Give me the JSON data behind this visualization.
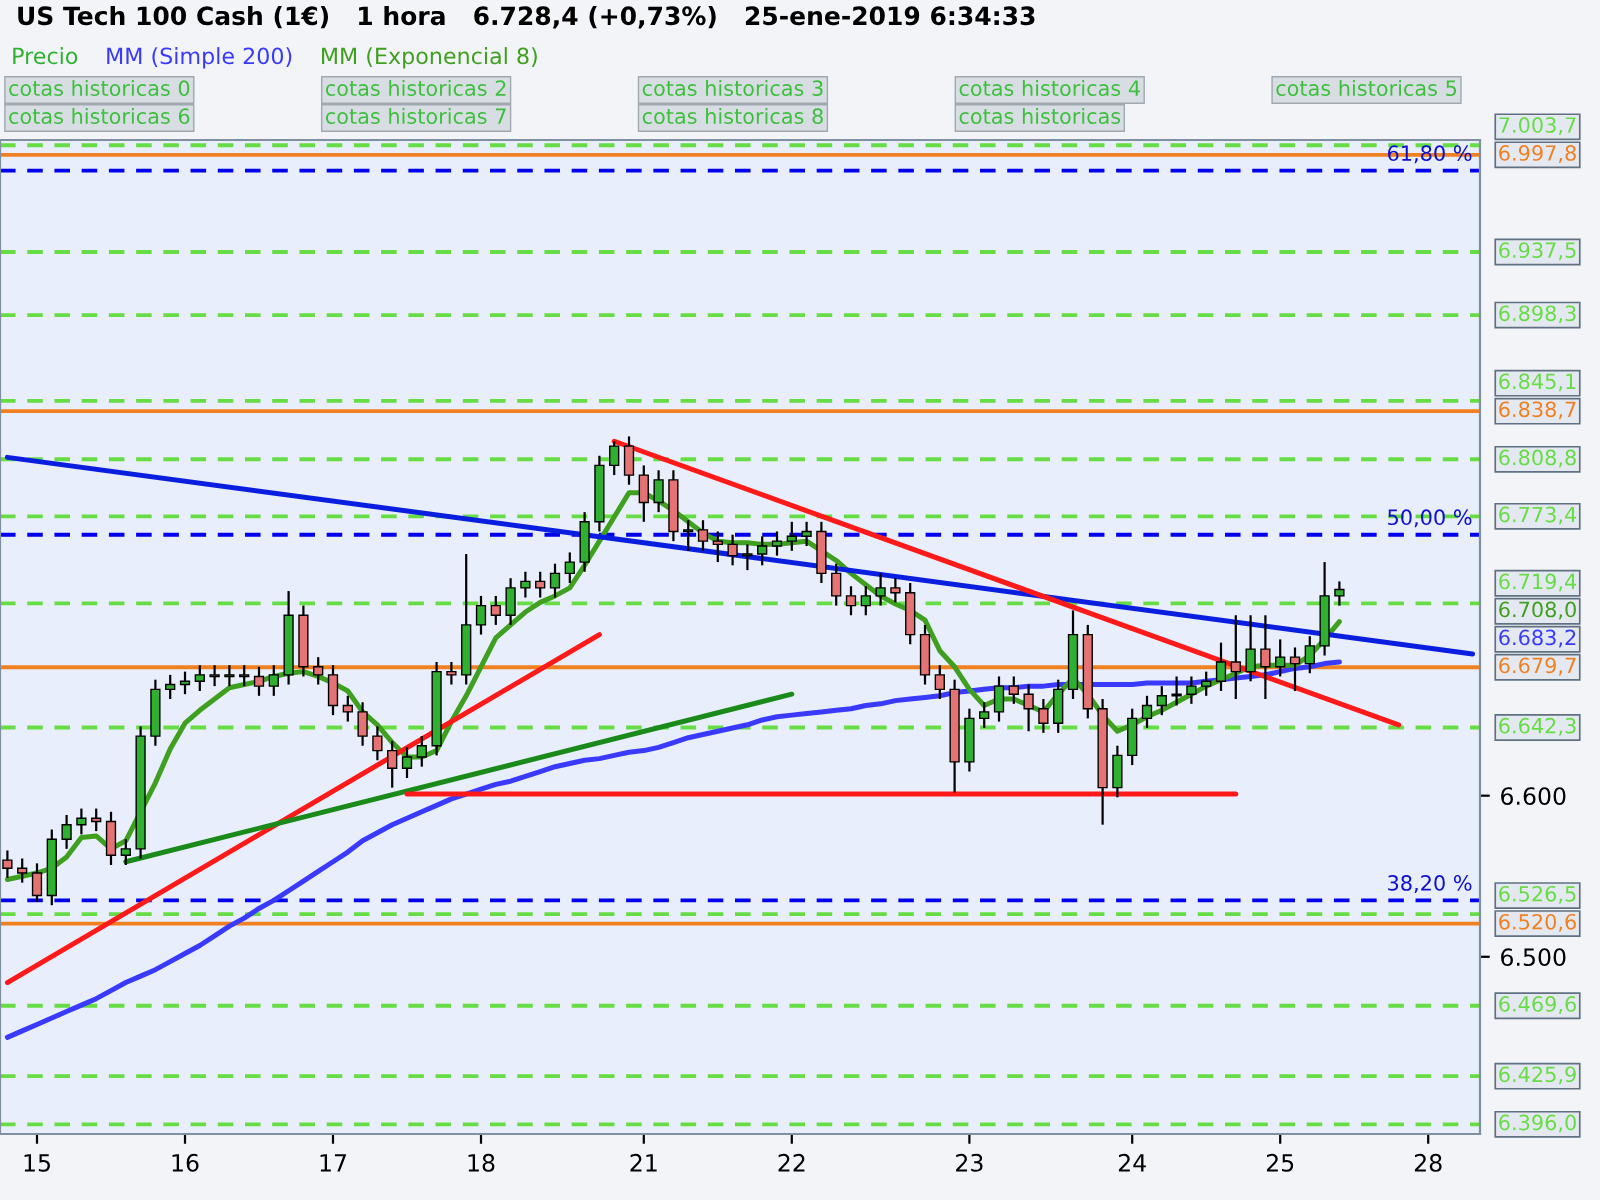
{
  "chart_data": {
    "type": "candlestick",
    "title": "US Tech 100 Cash (1€)   1 hora   6.728,4 (+0,73%)   25-ene-2019 6:34:33",
    "categories": [
      null,
      null,
      "15",
      null,
      null,
      null,
      null,
      null,
      null,
      null,
      null,
      null,
      "16",
      null,
      null,
      null,
      null,
      null,
      null,
      null,
      null,
      null,
      "17",
      null,
      null,
      null,
      null,
      null,
      null,
      null,
      null,
      null,
      "18",
      null,
      null,
      null,
      null,
      null,
      null,
      null,
      null,
      null,
      null,
      "21",
      null,
      null,
      null,
      null,
      null,
      null,
      null,
      null,
      null,
      "22",
      null,
      null,
      null,
      null,
      null,
      null,
      null,
      null,
      null,
      null,
      null,
      "23",
      null,
      null,
      null,
      null,
      null,
      null,
      null,
      null,
      null,
      null,
      "24",
      null,
      null,
      null,
      null,
      null,
      null,
      null,
      null,
      null,
      "25",
      null,
      null,
      null,
      null,
      null,
      null,
      null,
      null,
      null,
      "28",
      null,
      null,
      null
    ],
    "ylim": [
      6390,
      7007
    ],
    "yticks": [
      {
        "value": 6600,
        "label": "6.600"
      },
      {
        "value": 6500,
        "label": "6.500"
      }
    ],
    "legend": "top left",
    "marker": "none",
    "series": [
      {
        "name": "Precio",
        "color": "#30b030",
        "ohlc": [
          [
            6560,
            6566,
            6549,
            6555
          ],
          [
            6555,
            6561,
            6546,
            6552
          ],
          [
            6552,
            6558,
            6534,
            6538
          ],
          [
            6538,
            6579,
            6532,
            6573
          ],
          [
            6573,
            6588,
            6567,
            6582
          ],
          [
            6582,
            6592,
            6576,
            6586
          ],
          [
            6586,
            6592,
            6578,
            6584
          ],
          [
            6584,
            6590,
            6557,
            6563
          ],
          [
            6563,
            6573,
            6557,
            6567
          ],
          [
            6567,
            6643,
            6561,
            6637
          ],
          [
            6637,
            6672,
            6631,
            6666
          ],
          [
            6666,
            6675,
            6660,
            6669
          ],
          [
            6669,
            6677,
            6663,
            6671
          ],
          [
            6671,
            6681,
            6665,
            6675
          ],
          [
            6675,
            6681,
            6668,
            6674
          ],
          [
            6674,
            6681,
            6668,
            6675
          ],
          [
            6675,
            6681,
            6668,
            6674
          ],
          [
            6674,
            6680,
            6662,
            6668
          ],
          [
            6668,
            6681,
            6662,
            6675
          ],
          [
            6675,
            6727,
            6669,
            6712
          ],
          [
            6712,
            6718,
            6674,
            6680
          ],
          [
            6680,
            6686,
            6669,
            6675
          ],
          [
            6675,
            6681,
            6650,
            6656
          ],
          [
            6656,
            6662,
            6646,
            6652
          ],
          [
            6652,
            6658,
            6631,
            6637
          ],
          [
            6637,
            6643,
            6622,
            6628
          ],
          [
            6628,
            6634,
            6605,
            6617
          ],
          [
            6617,
            6630,
            6611,
            6624
          ],
          [
            6624,
            6637,
            6618,
            6631
          ],
          [
            6631,
            6683,
            6625,
            6677
          ],
          [
            6677,
            6683,
            6669,
            6675
          ],
          [
            6675,
            6750,
            6669,
            6706
          ],
          [
            6706,
            6724,
            6700,
            6718
          ],
          [
            6718,
            6724,
            6706,
            6712
          ],
          [
            6712,
            6735,
            6706,
            6729
          ],
          [
            6729,
            6739,
            6723,
            6733
          ],
          [
            6733,
            6739,
            6723,
            6729
          ],
          [
            6729,
            6744,
            6723,
            6738
          ],
          [
            6738,
            6751,
            6732,
            6745
          ],
          [
            6745,
            6776,
            6739,
            6770
          ],
          [
            6770,
            6811,
            6764,
            6805
          ],
          [
            6805,
            6820,
            6799,
            6817
          ],
          [
            6817,
            6823,
            6793,
            6799
          ],
          [
            6799,
            6805,
            6770,
            6782
          ],
          [
            6782,
            6802,
            6776,
            6796
          ],
          [
            6796,
            6802,
            6758,
            6764
          ],
          [
            6764,
            6771,
            6752,
            6765
          ],
          [
            6765,
            6771,
            6752,
            6758
          ],
          [
            6758,
            6764,
            6745,
            6756
          ],
          [
            6756,
            6762,
            6743,
            6749
          ],
          [
            6749,
            6756,
            6740,
            6750
          ],
          [
            6750,
            6761,
            6743,
            6755
          ],
          [
            6755,
            6764,
            6749,
            6758
          ],
          [
            6758,
            6770,
            6752,
            6761
          ],
          [
            6761,
            6770,
            6755,
            6764
          ],
          [
            6764,
            6770,
            6732,
            6738
          ],
          [
            6738,
            6744,
            6718,
            6724
          ],
          [
            6724,
            6730,
            6712,
            6718
          ],
          [
            6718,
            6730,
            6712,
            6724
          ],
          [
            6724,
            6738,
            6718,
            6729
          ],
          [
            6729,
            6735,
            6720,
            6726
          ],
          [
            6726,
            6732,
            6694,
            6700
          ],
          [
            6700,
            6706,
            6669,
            6675
          ],
          [
            6675,
            6681,
            6660,
            6666
          ],
          [
            6666,
            6672,
            6602,
            6621
          ],
          [
            6621,
            6654,
            6615,
            6648
          ],
          [
            6648,
            6658,
            6642,
            6652
          ],
          [
            6652,
            6674,
            6646,
            6668
          ],
          [
            6668,
            6674,
            6657,
            6663
          ],
          [
            6663,
            6669,
            6640,
            6654
          ],
          [
            6654,
            6660,
            6639,
            6645
          ],
          [
            6645,
            6672,
            6639,
            6666
          ],
          [
            6666,
            6715,
            6660,
            6700
          ],
          [
            6700,
            6706,
            6648,
            6654
          ],
          [
            6654,
            6660,
            6582,
            6605
          ],
          [
            6605,
            6631,
            6599,
            6625
          ],
          [
            6625,
            6654,
            6619,
            6648
          ],
          [
            6648,
            6662,
            6642,
            6656
          ],
          [
            6656,
            6668,
            6650,
            6662
          ],
          [
            6662,
            6674,
            6656,
            6663
          ],
          [
            6663,
            6674,
            6657,
            6668
          ],
          [
            6668,
            6677,
            6662,
            6671
          ],
          [
            6671,
            6695,
            6665,
            6683
          ],
          [
            6683,
            6712,
            6660,
            6677
          ],
          [
            6677,
            6712,
            6671,
            6691
          ],
          [
            6691,
            6712,
            6660,
            6680
          ],
          [
            6680,
            6697,
            6674,
            6686
          ],
          [
            6686,
            6692,
            6665,
            6682
          ],
          [
            6682,
            6699,
            6676,
            6693
          ],
          [
            6693,
            6745,
            6687,
            6724
          ],
          [
            6724,
            6733,
            6718,
            6728
          ],
          null,
          null,
          null,
          null,
          null,
          null,
          null,
          null,
          null
        ],
        "colors": [
          "#e67373",
          "#e67373",
          "#e67373",
          "#30b030",
          "#30b030",
          "#30b030",
          "#e67373",
          "#e67373",
          "#30b030",
          "#30b030",
          "#30b030",
          "#30b030",
          "#30b030",
          "#30b030",
          "#e67373",
          "#30b030",
          "#e67373",
          "#e67373",
          "#30b030",
          "#30b030",
          "#e67373",
          "#e67373",
          "#e67373",
          "#e67373",
          "#e67373",
          "#e67373",
          "#e67373",
          "#30b030",
          "#30b030",
          "#30b030",
          "#e67373",
          "#30b030",
          "#30b030",
          "#e67373",
          "#30b030",
          "#30b030",
          "#e67373",
          "#30b030",
          "#30b030",
          "#30b030",
          "#30b030",
          "#30b030",
          "#e67373",
          "#e67373",
          "#30b030",
          "#e67373",
          "#30b030",
          "#e67373",
          "#e67373",
          "#e67373",
          "#30b030",
          "#30b030",
          "#30b030",
          "#30b030",
          "#30b030",
          "#e67373",
          "#e67373",
          "#e67373",
          "#30b030",
          "#30b030",
          "#e67373",
          "#e67373",
          "#e67373",
          "#e67373",
          "#e67373",
          "#30b030",
          "#30b030",
          "#30b030",
          "#e67373",
          "#e67373",
          "#e67373",
          "#30b030",
          "#30b030",
          "#e67373",
          "#e67373",
          "#30b030",
          "#30b030",
          "#30b030",
          "#30b030",
          "#30b030",
          "#30b030",
          "#30b030",
          "#30b030",
          "#e67373",
          "#30b030",
          "#e67373",
          "#30b030",
          "#e67373",
          "#30b030",
          "#30b030",
          "#30b030",
          null,
          null,
          null,
          null,
          null,
          null,
          null,
          null,
          null
        ]
      },
      {
        "type": "line",
        "name": "MM (Simple 200)",
        "color": "#3a3aff",
        "values": [
          6450,
          6454,
          6458,
          6462,
          6466,
          6470,
          6474,
          6479,
          6484,
          6488,
          6492,
          6497,
          6502,
          6507,
          6513,
          6519,
          6524,
          6530,
          6535,
          6541,
          6547,
          6553,
          6559,
          6565,
          6572,
          6577,
          6582,
          6586,
          6590,
          6594,
          6598,
          6601,
          6604,
          6607,
          6609,
          6612,
          6615,
          6618,
          6620,
          6622,
          6623,
          6625,
          6627,
          6628,
          6630,
          6633,
          6636,
          6638,
          6640,
          6642,
          6644,
          6647,
          6649,
          6650,
          6651,
          6652,
          6653,
          6654,
          6656,
          6657,
          6659,
          6660,
          6661,
          6662,
          6664,
          6665,
          6666,
          6667,
          6667,
          6668,
          6668,
          6669,
          6669,
          6669,
          6669,
          6669,
          6669,
          6670,
          6670,
          6670,
          6670,
          6671,
          6672,
          6673,
          6674,
          6675,
          6677,
          6679,
          6680,
          6682,
          6683,
          null,
          null,
          null,
          null,
          null,
          null,
          null,
          null,
          null
        ]
      },
      {
        "type": "line",
        "name": "MM (Exponencial 8)",
        "color": "#3f9f1f",
        "values": [
          6548,
          6550,
          6552,
          6555,
          6562,
          6574,
          6575,
          6567,
          6572,
          6590,
          6608,
          6629,
          6645,
          6653,
          6660,
          6667,
          6669,
          6671,
          6674,
          6676,
          6677,
          6674,
          6670,
          6665,
          6652,
          6644,
          6633,
          6624,
          6624,
          6628,
          6646,
          6662,
          6680,
          6698,
          6706,
          6714,
          6720,
          6724,
          6729,
          6743,
          6758,
          6773,
          6788,
          6788,
          6783,
          6777,
          6770,
          6763,
          6758,
          6757,
          6757,
          6756,
          6756,
          6757,
          6758,
          6752,
          6746,
          6738,
          6731,
          6724,
          6719,
          6715,
          6709,
          6690,
          6680,
          6666,
          6656,
          6660,
          6660,
          6656,
          6652,
          6663,
          6673,
          6663,
          6650,
          6640,
          6644,
          6649,
          6653,
          6658,
          6663,
          6668,
          6672,
          6676,
          6680,
          6681,
          6681,
          6681,
          6687,
          6697,
          6708,
          null,
          null,
          null,
          null,
          null,
          null,
          null,
          null,
          null
        ]
      },
      {
        "type": "line",
        "color": "#0a1ee0",
        "values": [
          6810,
          null,
          null,
          null,
          null,
          null,
          null,
          null,
          null,
          null,
          null,
          null,
          null,
          null,
          null,
          null,
          null,
          null,
          null,
          null,
          null,
          null,
          null,
          null,
          null,
          null,
          null,
          null,
          null,
          null,
          null,
          null,
          null,
          null,
          null,
          null,
          null,
          null,
          null,
          null,
          null,
          null,
          null,
          null,
          null,
          null,
          null,
          null,
          null,
          null,
          null,
          null,
          null,
          null,
          null,
          null,
          null,
          null,
          null,
          null,
          null,
          null,
          null,
          null,
          null,
          null,
          null,
          null,
          null,
          null,
          null,
          null,
          null,
          null,
          null,
          null,
          null,
          null,
          null,
          null,
          null,
          null,
          null,
          null,
          null,
          null,
          null,
          null,
          null,
          null,
          null,
          null,
          null,
          null,
          null,
          null,
          null,
          null,
          null,
          6688
        ]
      },
      {
        "type": "line",
        "color": "#ff1a1a",
        "values": [
          6484,
          null,
          null,
          null,
          null,
          null,
          null,
          null,
          null,
          null,
          null,
          null,
          null,
          null,
          null,
          null,
          null,
          null,
          null,
          null,
          null,
          null,
          null,
          null,
          null,
          null,
          null,
          null,
          null,
          null,
          null,
          null,
          null,
          null,
          null,
          null,
          null,
          null,
          null,
          null,
          6700,
          null,
          null,
          null,
          null,
          null,
          null,
          null,
          null,
          null,
          null,
          null,
          null,
          null,
          null,
          null,
          null,
          null,
          null,
          null,
          null,
          null,
          null,
          null,
          null,
          null,
          null,
          null,
          null,
          null,
          null,
          null,
          null,
          null,
          null,
          null,
          null,
          null,
          null,
          null,
          null,
          null,
          null,
          null,
          null,
          null,
          null,
          null,
          null,
          null,
          null,
          null,
          null,
          null,
          null,
          null,
          null,
          null,
          null,
          null
        ]
      },
      {
        "type": "line",
        "color": "#1a8a1a",
        "values": [
          null,
          null,
          null,
          null,
          null,
          null,
          null,
          null,
          6559,
          null,
          null,
          null,
          null,
          null,
          null,
          null,
          null,
          null,
          null,
          null,
          null,
          null,
          null,
          null,
          null,
          null,
          null,
          null,
          null,
          null,
          null,
          null,
          null,
          null,
          null,
          null,
          null,
          null,
          null,
          null,
          null,
          null,
          null,
          null,
          null,
          null,
          null,
          null,
          null,
          null,
          null,
          null,
          null,
          6663,
          null,
          null,
          null,
          null,
          null,
          null,
          null,
          null,
          null,
          null,
          null,
          null,
          null,
          null,
          null,
          null,
          null,
          null,
          null,
          null,
          null,
          null,
          null,
          null,
          null,
          null,
          null,
          null,
          null,
          null,
          null,
          null,
          null,
          null,
          null,
          null,
          null,
          null,
          null,
          null,
          null,
          null,
          null,
          null,
          null,
          null
        ]
      },
      {
        "type": "line",
        "color": "#ff1a1a",
        "values": [
          null,
          null,
          null,
          null,
          null,
          null,
          null,
          null,
          null,
          null,
          null,
          null,
          null,
          null,
          null,
          null,
          null,
          null,
          null,
          null,
          null,
          null,
          null,
          null,
          null,
          null,
          null,
          null,
          null,
          null,
          null,
          null,
          null,
          null,
          null,
          null,
          null,
          null,
          null,
          null,
          null,
          6820,
          null,
          null,
          null,
          null,
          null,
          null,
          null,
          null,
          null,
          null,
          null,
          null,
          null,
          null,
          null,
          null,
          null,
          null,
          null,
          null,
          null,
          null,
          null,
          null,
          null,
          null,
          null,
          null,
          null,
          null,
          null,
          null,
          null,
          null,
          null,
          null,
          null,
          null,
          null,
          null,
          null,
          null,
          null,
          null,
          null,
          null,
          null,
          null,
          null,
          null,
          null,
          null,
          6644,
          null,
          null,
          null,
          null,
          null
        ]
      },
      {
        "type": "line",
        "color": "#ff1a1a",
        "values": [
          null,
          null,
          null,
          null,
          null,
          null,
          null,
          null,
          null,
          null,
          null,
          null,
          null,
          null,
          null,
          null,
          null,
          null,
          null,
          null,
          null,
          null,
          null,
          null,
          null,
          null,
          null,
          6601,
          null,
          null,
          null,
          null,
          null,
          null,
          null,
          null,
          null,
          null,
          null,
          null,
          null,
          null,
          null,
          null,
          null,
          null,
          null,
          null,
          null,
          null,
          null,
          null,
          null,
          null,
          null,
          null,
          null,
          null,
          null,
          null,
          null,
          null,
          null,
          null,
          null,
          null,
          null,
          null,
          null,
          null,
          null,
          null,
          null,
          null,
          null,
          null,
          null,
          null,
          null,
          null,
          null,
          null,
          null,
          6601,
          null,
          null,
          null,
          null,
          null,
          null,
          null,
          null,
          null,
          null,
          null,
          null,
          null,
          null,
          null,
          null
        ]
      }
    ],
    "ref_lines": [
      {
        "axis": "y",
        "value": 6988,
        "color": "#0000ee",
        "line_style": "dashed"
      },
      {
        "axis": "y",
        "value": 6762,
        "color": "#0000ee",
        "line_style": "dashed"
      },
      {
        "axis": "y",
        "value": 6535,
        "color": "#0000ee",
        "line_style": "dashed"
      },
      {
        "axis": "y",
        "value": 7003.7,
        "label": "7.003,7",
        "color": "#66dd44",
        "line_style": "dashed"
      },
      {
        "axis": "y",
        "value": 6937.5,
        "label": "6.937,5",
        "color": "#66dd44",
        "line_style": "dashed"
      },
      {
        "axis": "y",
        "value": 6898.3,
        "label": "6.898,3",
        "color": "#66dd44",
        "line_style": "dashed"
      },
      {
        "axis": "y",
        "value": 6845.1,
        "label": "6.845,1",
        "color": "#66dd44",
        "line_style": "dashed"
      },
      {
        "axis": "y",
        "value": 6808.8,
        "label": "6.808,8",
        "color": "#66dd44",
        "line_style": "dashed"
      },
      {
        "axis": "y",
        "value": 6773.4,
        "label": "6.773,4",
        "color": "#66dd44",
        "line_style": "dashed"
      },
      {
        "axis": "y",
        "value": 6719.4,
        "label": "6.719,4",
        "color": "#66dd44",
        "line_style": "dashed"
      },
      {
        "axis": "y",
        "value": 6642.3,
        "label": "6.642,3",
        "color": "#66dd44",
        "line_style": "dashed"
      },
      {
        "axis": "y",
        "value": 6526.5,
        "label": "6.526,5",
        "color": "#66dd44",
        "line_style": "dashed"
      },
      {
        "axis": "y",
        "value": 6469.6,
        "label": "6.469,6",
        "color": "#66dd44",
        "line_style": "dashed"
      },
      {
        "axis": "y",
        "value": 6425.9,
        "label": "6.425,9",
        "color": "#66dd44",
        "line_style": "dashed"
      },
      {
        "axis": "y",
        "value": 6396.0,
        "label": "6.396,0",
        "color": "#66dd44",
        "line_style": "dashed"
      },
      {
        "axis": "y",
        "value": 6997.8,
        "label": "6.997,8",
        "color": "#f08020",
        "line_style": "solid"
      },
      {
        "axis": "y",
        "value": 6838.7,
        "label": "6.838,7",
        "color": "#f08020",
        "line_style": "solid"
      },
      {
        "axis": "y",
        "value": 6679.7,
        "label": "6.679,7",
        "color": "#f08020",
        "line_style": "solid"
      },
      {
        "axis": "y",
        "value": 6520.6,
        "label": "6.520,6",
        "color": "#f08020",
        "line_style": "solid"
      }
    ],
    "annotations": [
      {
        "text": "61,80 %",
        "y": 6988
      },
      {
        "text": "50,00 %",
        "y": 6762
      },
      {
        "text": "38,20 %",
        "y": 6535
      },
      "6.683,2",
      "6.708,0",
      "cotas historicas 0",
      "cotas historicas 2",
      "cotas historicas 3",
      "cotas historicas 4",
      "cotas historicas 5",
      "cotas historicas 6",
      "cotas historicas 7",
      "cotas historicas 8",
      "cotas historicas"
    ]
  }
}
